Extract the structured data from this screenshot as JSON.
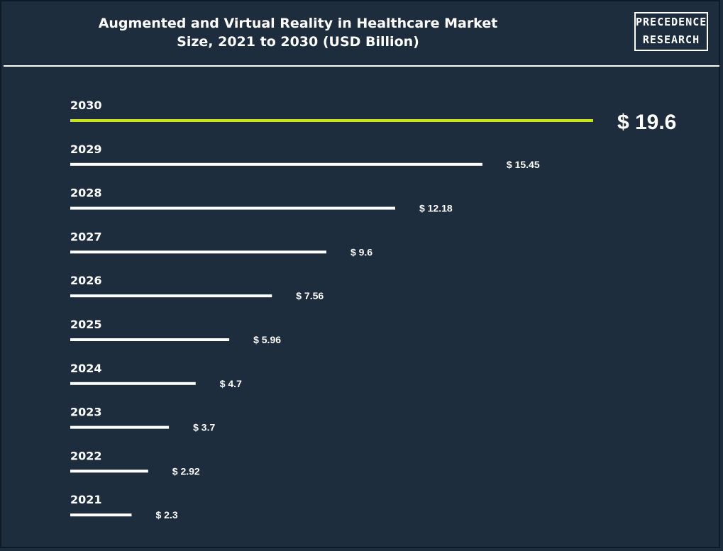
{
  "header": {
    "title_line1": "Augmented and Virtual Reality in Healthcare Market",
    "title_line2": "Size, 2021 to 2030 (USD Billion)",
    "logo_line1": "PRECEDENCE",
    "logo_line2": "RESEARCH"
  },
  "colors": {
    "background": "#1e2d3e",
    "bar": "#ffffff",
    "highlight_bar": "#c8e21c"
  },
  "chart_data": {
    "type": "bar",
    "orientation": "horizontal",
    "title": "Augmented and Virtual Reality in Healthcare Market Size, 2021 to 2030 (USD Billion)",
    "categories": [
      "2030",
      "2029",
      "2028",
      "2027",
      "2026",
      "2025",
      "2024",
      "2023",
      "2022",
      "2021"
    ],
    "values": [
      19.6,
      15.45,
      12.18,
      9.6,
      7.56,
      5.96,
      4.7,
      3.7,
      2.92,
      2.3
    ],
    "value_labels": [
      "$ 19.6",
      "$ 15.45",
      "$ 12.18",
      "$ 9.6",
      "$ 7.56",
      "$ 5.96",
      "$ 4.7",
      "$ 3.7",
      "$ 2.92",
      "$ 2.3"
    ],
    "highlight": "2030",
    "grid": false,
    "legend": "none"
  }
}
